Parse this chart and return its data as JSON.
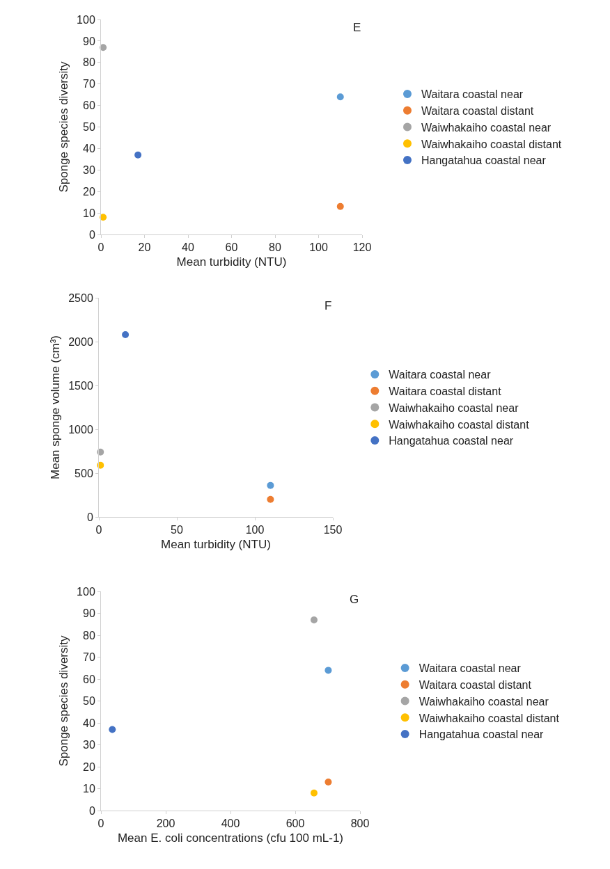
{
  "chart_data": [
    {
      "type": "scatter",
      "title": "E",
      "xlabel": "Mean turbidity (NTU)",
      "ylabel": "Sponge species diversity",
      "xlim": [
        0,
        120
      ],
      "xticks": [
        0,
        20,
        40,
        60,
        80,
        100,
        120
      ],
      "ylim": [
        0,
        100
      ],
      "yticks": [
        0,
        10,
        20,
        30,
        40,
        50,
        60,
        70,
        80,
        90,
        100
      ],
      "legend": "right",
      "marker": "circle",
      "series": [
        {
          "name": "Waitara coastal near",
          "color": "#5b9bd5",
          "x": [
            110
          ],
          "values": [
            64
          ]
        },
        {
          "name": "Waitara coastal distant",
          "color": "#ed7d31",
          "x": [
            110
          ],
          "values": [
            13
          ]
        },
        {
          "name": "Waiwhakaiho coastal near",
          "color": "#a5a5a5",
          "x": [
            1
          ],
          "values": [
            87
          ]
        },
        {
          "name": "Waiwhakaiho coastal distant",
          "color": "#ffc000",
          "x": [
            1
          ],
          "values": [
            8
          ]
        },
        {
          "name": "Hangatahua coastal near",
          "color": "#4472c4",
          "x": [
            17
          ],
          "values": [
            37
          ]
        }
      ]
    },
    {
      "type": "scatter",
      "title": "F",
      "xlabel": "Mean turbidity (NTU)",
      "ylabel": "Mean sponge volume (cm³)",
      "xlim": [
        0,
        150
      ],
      "xticks": [
        0,
        50,
        100,
        150
      ],
      "ylim": [
        0,
        2500
      ],
      "yticks": [
        0,
        500,
        1000,
        1500,
        2000,
        2500
      ],
      "legend": "right",
      "marker": "circle",
      "series": [
        {
          "name": "Waitara coastal near",
          "color": "#5b9bd5",
          "x": [
            110
          ],
          "values": [
            360
          ]
        },
        {
          "name": "Waitara coastal distant",
          "color": "#ed7d31",
          "x": [
            110
          ],
          "values": [
            200
          ]
        },
        {
          "name": "Waiwhakaiho coastal near",
          "color": "#a5a5a5",
          "x": [
            1
          ],
          "values": [
            740
          ]
        },
        {
          "name": "Waiwhakaiho coastal distant",
          "color": "#ffc000",
          "x": [
            1
          ],
          "values": [
            590
          ]
        },
        {
          "name": "Hangatahua coastal near",
          "color": "#4472c4",
          "x": [
            17
          ],
          "values": [
            2080
          ]
        }
      ]
    },
    {
      "type": "scatter",
      "title": "G",
      "xlabel": "Mean E. coli concentrations (cfu 100 mL-1)",
      "ylabel": "Sponge species diversity",
      "xlim": [
        0,
        800
      ],
      "xticks": [
        0,
        200,
        400,
        600,
        800
      ],
      "ylim": [
        0,
        100
      ],
      "yticks": [
        0,
        10,
        20,
        30,
        40,
        50,
        60,
        70,
        80,
        90,
        100
      ],
      "legend": "right",
      "marker": "circle",
      "series": [
        {
          "name": "Waitara coastal near",
          "color": "#5b9bd5",
          "x": [
            702
          ],
          "values": [
            64
          ]
        },
        {
          "name": "Waitara coastal distant",
          "color": "#ed7d31",
          "x": [
            702
          ],
          "values": [
            13
          ]
        },
        {
          "name": "Waiwhakaiho coastal near",
          "color": "#a5a5a5",
          "x": [
            658
          ],
          "values": [
            87
          ]
        },
        {
          "name": "Waiwhakaiho coastal distant",
          "color": "#ffc000",
          "x": [
            658
          ],
          "values": [
            8
          ]
        },
        {
          "name": "Hangatahua coastal near",
          "color": "#4472c4",
          "x": [
            35
          ],
          "values": [
            37
          ]
        }
      ]
    }
  ]
}
